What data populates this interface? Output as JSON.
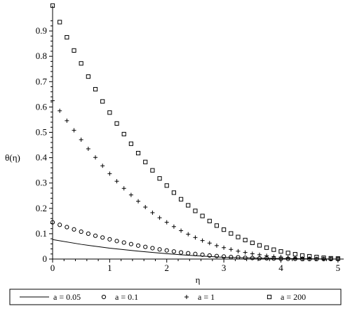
{
  "chart_data": {
    "type": "scatter",
    "title": "",
    "xlabel": "η",
    "ylabel": "θ(η)",
    "xlim": [
      0,
      5.1
    ],
    "ylim": [
      0,
      1.0
    ],
    "xticks": [
      0,
      1,
      2,
      3,
      4,
      5
    ],
    "yticks": [
      0,
      0.1,
      0.2,
      0.3,
      0.4,
      0.5,
      0.6,
      0.7,
      0.8,
      0.9
    ],
    "grid": false,
    "legend": "bottom",
    "series": [
      {
        "name": "a = 0.05",
        "marker": "line",
        "x": [
          0,
          0.5,
          1,
          1.5,
          2,
          2.5,
          3,
          3.5,
          4,
          4.5,
          5
        ],
        "y": [
          0.077,
          0.058,
          0.043,
          0.031,
          0.021,
          0.013,
          0.007,
          0.004,
          0.002,
          0.001,
          0.0
        ]
      },
      {
        "name": "a = 0.1",
        "marker": "circle",
        "x": [
          0,
          0.125,
          0.25,
          0.375,
          0.5,
          0.625,
          0.75,
          0.875,
          1.0,
          1.125,
          1.25,
          1.375,
          1.5,
          1.625,
          1.75,
          1.875,
          2.0,
          2.125,
          2.25,
          2.375,
          2.5,
          2.625,
          2.75,
          2.875,
          3.0,
          3.125,
          3.25,
          3.375,
          3.5,
          3.625,
          3.75,
          3.875,
          4.0,
          4.125,
          4.25,
          4.375,
          4.5,
          4.625,
          4.75,
          4.875,
          5.0
        ],
        "y": [
          0.145,
          0.135,
          0.126,
          0.117,
          0.108,
          0.1,
          0.092,
          0.085,
          0.078,
          0.071,
          0.065,
          0.059,
          0.053,
          0.048,
          0.043,
          0.038,
          0.034,
          0.03,
          0.026,
          0.023,
          0.02,
          0.017,
          0.014,
          0.012,
          0.01,
          0.008,
          0.007,
          0.005,
          0.004,
          0.003,
          0.003,
          0.002,
          0.001,
          0.001,
          0.001,
          0.0,
          0.0,
          0.0,
          0.0,
          0.0,
          0.0
        ]
      },
      {
        "name": "a = 1",
        "marker": "plus",
        "x": [
          0,
          0.125,
          0.25,
          0.375,
          0.5,
          0.625,
          0.75,
          0.875,
          1.0,
          1.125,
          1.25,
          1.375,
          1.5,
          1.625,
          1.75,
          1.875,
          2.0,
          2.125,
          2.25,
          2.375,
          2.5,
          2.625,
          2.75,
          2.875,
          3.0,
          3.125,
          3.25,
          3.375,
          3.5,
          3.625,
          3.75,
          3.875,
          4.0,
          4.125,
          4.25,
          4.375,
          4.5,
          4.625,
          4.75,
          4.875,
          5.0
        ],
        "y": [
          0.625,
          0.585,
          0.546,
          0.508,
          0.471,
          0.435,
          0.401,
          0.368,
          0.337,
          0.307,
          0.279,
          0.253,
          0.228,
          0.205,
          0.183,
          0.163,
          0.145,
          0.128,
          0.112,
          0.098,
          0.085,
          0.073,
          0.063,
          0.053,
          0.045,
          0.038,
          0.031,
          0.026,
          0.021,
          0.017,
          0.013,
          0.01,
          0.008,
          0.006,
          0.004,
          0.003,
          0.002,
          0.001,
          0.001,
          0.0,
          0.0
        ]
      },
      {
        "name": "a = 200",
        "marker": "square",
        "x": [
          0,
          0.125,
          0.25,
          0.375,
          0.5,
          0.625,
          0.75,
          0.875,
          1.0,
          1.125,
          1.25,
          1.375,
          1.5,
          1.625,
          1.75,
          1.875,
          2.0,
          2.125,
          2.25,
          2.375,
          2.5,
          2.625,
          2.75,
          2.875,
          3.0,
          3.125,
          3.25,
          3.375,
          3.5,
          3.625,
          3.75,
          3.875,
          4.0,
          4.125,
          4.25,
          4.375,
          4.5,
          4.625,
          4.75,
          4.875,
          5.0
        ],
        "y": [
          1.0,
          0.935,
          0.875,
          0.823,
          0.772,
          0.72,
          0.67,
          0.622,
          0.578,
          0.535,
          0.493,
          0.455,
          0.418,
          0.383,
          0.35,
          0.318,
          0.29,
          0.262,
          0.236,
          0.212,
          0.19,
          0.17,
          0.15,
          0.132,
          0.116,
          0.101,
          0.087,
          0.075,
          0.064,
          0.054,
          0.045,
          0.037,
          0.03,
          0.024,
          0.019,
          0.014,
          0.011,
          0.008,
          0.005,
          0.003,
          0.002
        ]
      }
    ]
  }
}
